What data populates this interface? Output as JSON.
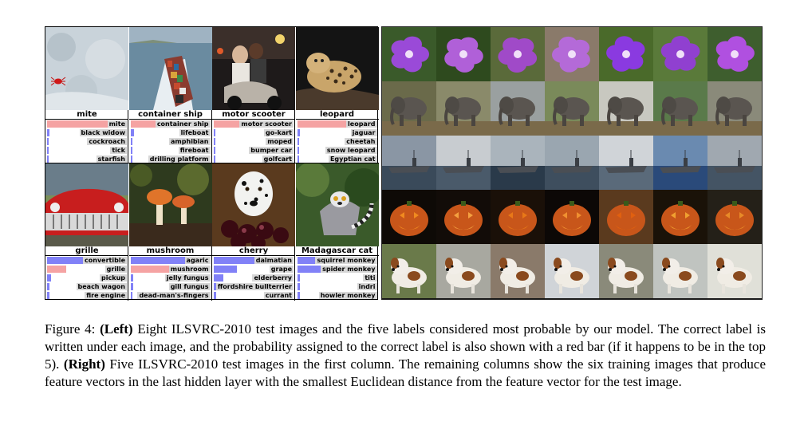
{
  "left": {
    "cells": [
      {
        "truth": "mite",
        "truth_rank": 1,
        "preds": [
          {
            "label": "mite",
            "p": 0.98
          },
          {
            "label": "black widow",
            "p": 0.03
          },
          {
            "label": "cockroach",
            "p": 0.02
          },
          {
            "label": "tick",
            "p": 0.02
          },
          {
            "label": "starfish",
            "p": 0.02
          }
        ]
      },
      {
        "truth": "container ship",
        "truth_rank": 1,
        "preds": [
          {
            "label": "container ship",
            "p": 0.85
          },
          {
            "label": "lifeboat",
            "p": 0.04
          },
          {
            "label": "amphibian",
            "p": 0.02
          },
          {
            "label": "fireboat",
            "p": 0.02
          },
          {
            "label": "drilling platform",
            "p": 0.02
          }
        ]
      },
      {
        "truth": "motor scooter",
        "truth_rank": 1,
        "preds": [
          {
            "label": "motor scooter",
            "p": 0.98
          },
          {
            "label": "go-kart",
            "p": 0.02
          },
          {
            "label": "moped",
            "p": 0.02
          },
          {
            "label": "bumper car",
            "p": 0.02
          },
          {
            "label": "golfcart",
            "p": 0.02
          }
        ]
      },
      {
        "truth": "leopard",
        "truth_rank": 1,
        "preds": [
          {
            "label": "leopard",
            "p": 0.97
          },
          {
            "label": "jaguar",
            "p": 0.03
          },
          {
            "label": "cheetah",
            "p": 0.02
          },
          {
            "label": "snow leopard",
            "p": 0.02
          },
          {
            "label": "Egyptian cat",
            "p": 0.02
          }
        ]
      },
      {
        "truth": "grille",
        "truth_rank": 2,
        "preds": [
          {
            "label": "convertible",
            "p": 0.78
          },
          {
            "label": "grille",
            "p": 0.24
          },
          {
            "label": "pickup",
            "p": 0.05
          },
          {
            "label": "beach wagon",
            "p": 0.03
          },
          {
            "label": "fire engine",
            "p": 0.03
          }
        ]
      },
      {
        "truth": "mushroom",
        "truth_rank": 2,
        "preds": [
          {
            "label": "agaric",
            "p": 0.75
          },
          {
            "label": "mushroom",
            "p": 0.7
          },
          {
            "label": "jelly fungus",
            "p": 0.03
          },
          {
            "label": "gill fungus",
            "p": 0.03
          },
          {
            "label": "dead-man's-fingers",
            "p": 0.02
          }
        ]
      },
      {
        "truth": "cherry",
        "truth_rank": 0,
        "preds": [
          {
            "label": "dalmatian",
            "p": 0.75
          },
          {
            "label": "grape",
            "p": 0.3
          },
          {
            "label": "elderberry",
            "p": 0.12
          },
          {
            "label": "ffordshire bullterrier",
            "p": 0.06
          },
          {
            "label": "currant",
            "p": 0.03
          }
        ]
      },
      {
        "truth": "Madagascar cat",
        "truth_rank": 0,
        "preds": [
          {
            "label": "squirrel monkey",
            "p": 0.68
          },
          {
            "label": "spider monkey",
            "p": 0.3
          },
          {
            "label": "titi",
            "p": 0.03
          },
          {
            "label": "indri",
            "p": 0.03
          },
          {
            "label": "howler monkey",
            "p": 0.03
          }
        ]
      }
    ],
    "bar_color": "#8181f7",
    "truth_bar_color": "#f5a3a3"
  },
  "right": {
    "rows": [
      "flower",
      "elephant",
      "aircraft carrier",
      "jack-o'-lantern",
      "dog"
    ]
  },
  "caption": {
    "lead": "Figure 4: ",
    "left_tag": "(Left)",
    "left_text": " Eight ILSVRC-2010 test images and the five labels considered most probable by our model. The correct label is written under each image, and the probability assigned to the correct label is also shown with a red bar (if it happens to be in the top 5). ",
    "right_tag": "(Right)",
    "right_text": " Five ILSVRC-2010 test images in the first column. The remaining columns show the six training images that produce feature vectors in the last hidden layer with the smallest Euclidean distance from the feature vector for the test image."
  }
}
